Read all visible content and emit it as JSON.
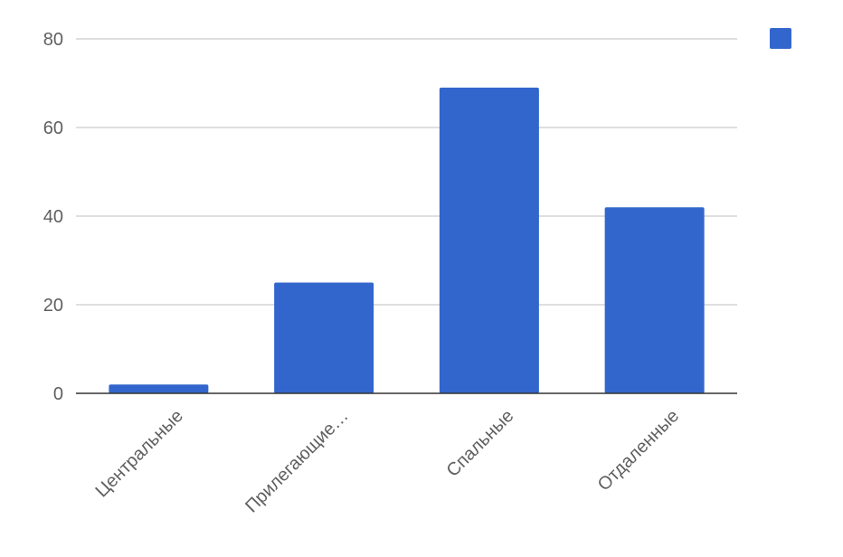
{
  "chart_data": {
    "type": "bar",
    "title": "",
    "xlabel": "",
    "ylabel": "",
    "categories": [
      "Центральные",
      "Прилегающие…",
      "Спальные",
      "Отдаленные"
    ],
    "values": [
      2,
      25,
      69,
      42
    ],
    "ylim": [
      0,
      80
    ],
    "yticks": [
      0,
      20,
      40,
      60,
      80
    ],
    "grid": true,
    "legend": {
      "position": "top-right"
    },
    "bar_color": "#3366cc"
  }
}
